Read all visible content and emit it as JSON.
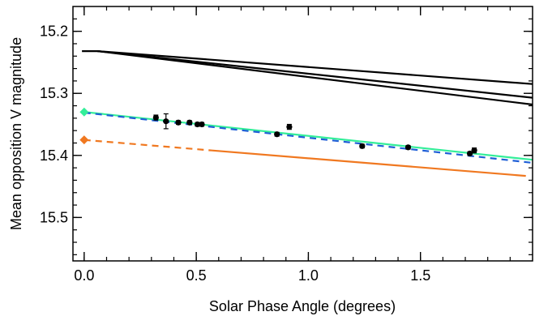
{
  "chart_data": {
    "type": "scatter",
    "title": "",
    "xlabel": "Solar Phase Angle (degrees)",
    "ylabel": "Mean opposition V magnitude",
    "xlim": [
      -0.05,
      2.0
    ],
    "ylim": [
      15.57,
      15.16
    ],
    "y_inverted": true,
    "grid": false,
    "legend": "none",
    "x_ticks": [
      {
        "value": 0.0,
        "label": "0.0"
      },
      {
        "value": 0.5,
        "label": "0.5"
      },
      {
        "value": 1.0,
        "label": "1.0"
      },
      {
        "value": 1.5,
        "label": "1.5"
      }
    ],
    "y_ticks": [
      {
        "value": 15.2,
        "label": "15.2"
      },
      {
        "value": 15.3,
        "label": "15.3"
      },
      {
        "value": 15.4,
        "label": "15.4"
      },
      {
        "value": 15.5,
        "label": "15.5"
      }
    ],
    "x_minor_step": 0.1,
    "y_minor_step": 0.02,
    "observations": {
      "color": "#000000",
      "points": [
        {
          "x": 0.32,
          "y": 15.339,
          "err": 0.004
        },
        {
          "x": 0.365,
          "y": 15.345,
          "err": 0.012
        },
        {
          "x": 0.42,
          "y": 15.347,
          "err": 0.003
        },
        {
          "x": 0.47,
          "y": 15.347,
          "err": 0.003
        },
        {
          "x": 0.505,
          "y": 15.35,
          "err": 0.003
        },
        {
          "x": 0.525,
          "y": 15.35,
          "err": 0.003
        },
        {
          "x": 0.86,
          "y": 15.366,
          "err": 0.003
        },
        {
          "x": 0.915,
          "y": 15.354,
          "err": 0.004
        },
        {
          "x": 1.24,
          "y": 15.385,
          "err": 0.003
        },
        {
          "x": 1.445,
          "y": 15.387,
          "err": 0.003
        },
        {
          "x": 1.72,
          "y": 15.397,
          "err": 0.003
        },
        {
          "x": 1.74,
          "y": 15.392,
          "err": 0.004
        }
      ]
    },
    "series": [
      {
        "color": "#000000",
        "style": "solid",
        "points": [
          [
            -0.01,
            15.232
          ],
          [
            0.06,
            15.232
          ],
          [
            2.0,
            15.285
          ]
        ]
      },
      {
        "color": "#000000",
        "style": "solid",
        "points": [
          [
            0.06,
            15.232
          ],
          [
            2.0,
            15.307
          ]
        ]
      },
      {
        "color": "#000000",
        "style": "solid",
        "points": [
          [
            0.06,
            15.232
          ],
          [
            2.0,
            15.318
          ]
        ]
      },
      {
        "color": "#33ee99",
        "style": "solid",
        "points": [
          [
            0.0,
            15.33
          ],
          [
            2.0,
            15.407
          ]
        ]
      },
      {
        "color": "#1f5fd6",
        "style": "dashed",
        "points": [
          [
            0.0,
            15.331
          ],
          [
            2.0,
            15.412
          ]
        ]
      },
      {
        "color": "#f07820",
        "style": "dashed",
        "points": [
          [
            0.0,
            15.375
          ],
          [
            0.57,
            15.392
          ]
        ]
      },
      {
        "color": "#f07820",
        "style": "solid",
        "points": [
          [
            0.57,
            15.392
          ],
          [
            1.97,
            15.433
          ]
        ]
      }
    ],
    "markers": [
      {
        "shape": "diamond",
        "color": "#33ee99",
        "x": 0.0,
        "y": 15.33
      },
      {
        "shape": "diamond",
        "color": "#f07820",
        "x": 0.0,
        "y": 15.375
      }
    ]
  }
}
